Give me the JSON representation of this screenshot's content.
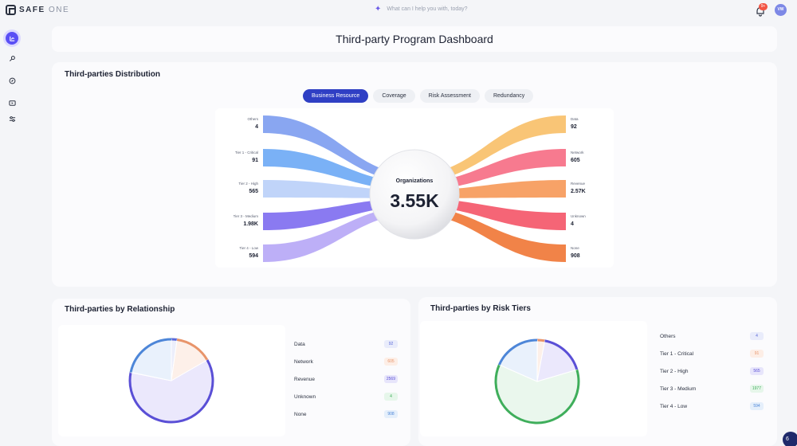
{
  "app": {
    "logo_bold": "SAFE",
    "logo_light": "ONE"
  },
  "search": {
    "placeholder": "What can I help you with, today?"
  },
  "notifications": {
    "count": "9+"
  },
  "user": {
    "initials": "VW"
  },
  "page": {
    "title": "Third-party Program Dashboard"
  },
  "distribution": {
    "title": "Third-parties Distribution",
    "tabs": [
      {
        "label": "Business Resource",
        "active": true
      },
      {
        "label": "Coverage",
        "active": false
      },
      {
        "label": "Risk Assessment",
        "active": false
      },
      {
        "label": "Redundancy",
        "active": false
      }
    ],
    "center": {
      "label": "Organizations",
      "value": "3.55K"
    },
    "left_nodes": [
      {
        "label": "Others",
        "value": "4",
        "color": "#7c9cf0"
      },
      {
        "label": "Tier 1 - Critical",
        "value": "91",
        "color": "#6ba8f5"
      },
      {
        "label": "Tier 2 - High",
        "value": "565",
        "color": "#b9cff8"
      },
      {
        "label": "Tier 3 - Medium",
        "value": "1.98K",
        "color": "#7d6cf0"
      },
      {
        "label": "Tier 4 - Low",
        "value": "594",
        "color": "#b6a6f6"
      }
    ],
    "right_nodes": [
      {
        "label": "Data",
        "value": "92",
        "color": "#f8c06a"
      },
      {
        "label": "Network",
        "value": "605",
        "color": "#f66f85"
      },
      {
        "label": "Revenue",
        "value": "2.57K",
        "color": "#f69a5a"
      },
      {
        "label": "Unknown",
        "value": "4",
        "color": "#f4586a"
      },
      {
        "label": "None",
        "value": "908",
        "color": "#f07838"
      }
    ]
  },
  "relationship": {
    "title": "Third-parties by Relationship",
    "legend": [
      {
        "label": "Data",
        "value": "92",
        "bg": "#e9ecfb",
        "fg": "#5a68d8"
      },
      {
        "label": "Network",
        "value": "605",
        "bg": "#fdeee6",
        "fg": "#e8946a"
      },
      {
        "label": "Revenue",
        "value": "2569",
        "bg": "#e7e5fb",
        "fg": "#5a4fd6"
      },
      {
        "label": "Unknown",
        "value": "4",
        "bg": "#e6f6ea",
        "fg": "#3fae5b"
      },
      {
        "label": "None",
        "value": "908",
        "bg": "#e5effb",
        "fg": "#4d86d8"
      }
    ]
  },
  "risk_tiers": {
    "title": "Third-parties by Risk Tiers",
    "legend": [
      {
        "label": "Others",
        "value": "4",
        "bg": "#e9ecfb",
        "fg": "#5a68d8"
      },
      {
        "label": "Tier 1 - Critical",
        "value": "91",
        "bg": "#fdeee6",
        "fg": "#e8946a"
      },
      {
        "label": "Tier 2 - High",
        "value": "565",
        "bg": "#e7e5fb",
        "fg": "#5a4fd6"
      },
      {
        "label": "Tier 3 - Medium",
        "value": "1977",
        "bg": "#e6f6ea",
        "fg": "#3fae5b"
      },
      {
        "label": "Tier 4 - Low",
        "value": "594",
        "bg": "#e5effb",
        "fg": "#4d86d8"
      }
    ]
  },
  "chat": {
    "count": "6"
  },
  "colors": {
    "accent": "#2f3fc4",
    "purple": "#5a4ff5"
  }
}
